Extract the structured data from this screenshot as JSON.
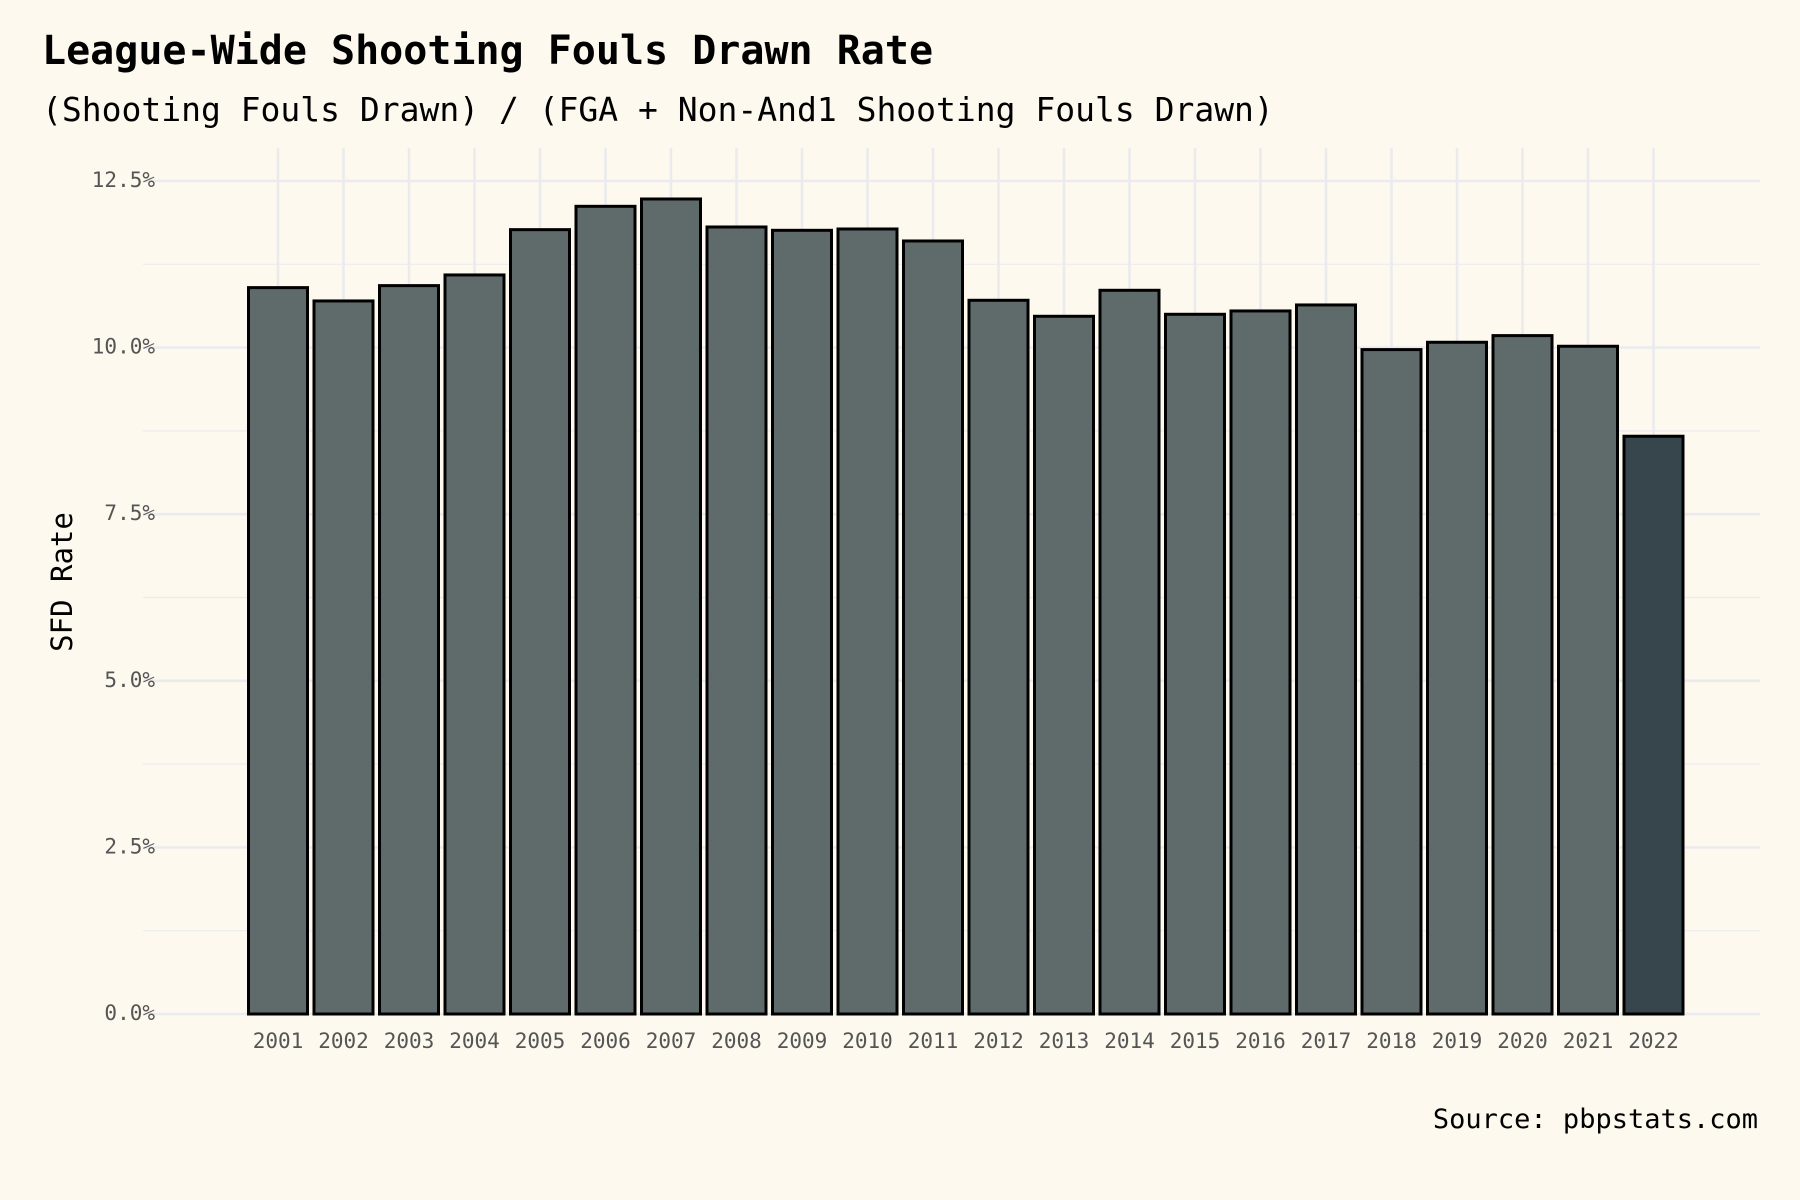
{
  "title": "League-Wide Shooting Fouls Drawn Rate",
  "subtitle": "(Shooting Fouls Drawn) / (FGA + Non-And1 Shooting Fouls Drawn)",
  "source": "Source: pbpstats.com",
  "colors": {
    "background": "#fdf9ee",
    "bar": "#5f6a6b",
    "bar_highlight": "#37464c",
    "bar_outline": "#000000",
    "grid": "#ebebef"
  },
  "chart_data": {
    "type": "bar",
    "title": "League-Wide Shooting Fouls Drawn Rate",
    "subtitle": "(Shooting Fouls Drawn) / (FGA + Non-And1 Shooting Fouls Drawn)",
    "xlabel": "",
    "ylabel": "SFD Rate",
    "ylim": [
      0,
      12.5
    ],
    "y_unit": "%",
    "y_ticks": [
      0,
      2.5,
      5,
      7.5,
      10,
      12.5
    ],
    "y_tick_labels": [
      "0.0%",
      "2.5%",
      "5.0%",
      "7.5%",
      "10.0%",
      "12.5%"
    ],
    "grid": true,
    "legend": "none",
    "highlight_category": "2022",
    "categories": [
      "2001",
      "2002",
      "2003",
      "2004",
      "2005",
      "2006",
      "2007",
      "2008",
      "2009",
      "2010",
      "2011",
      "2012",
      "2013",
      "2014",
      "2015",
      "2016",
      "2017",
      "2018",
      "2019",
      "2020",
      "2021",
      "2022"
    ],
    "values": [
      10.9,
      10.7,
      10.93,
      11.09,
      11.77,
      12.12,
      12.23,
      11.81,
      11.76,
      11.78,
      11.6,
      10.71,
      10.47,
      10.86,
      10.5,
      10.55,
      10.64,
      9.97,
      10.08,
      10.18,
      10.02,
      8.67
    ]
  }
}
